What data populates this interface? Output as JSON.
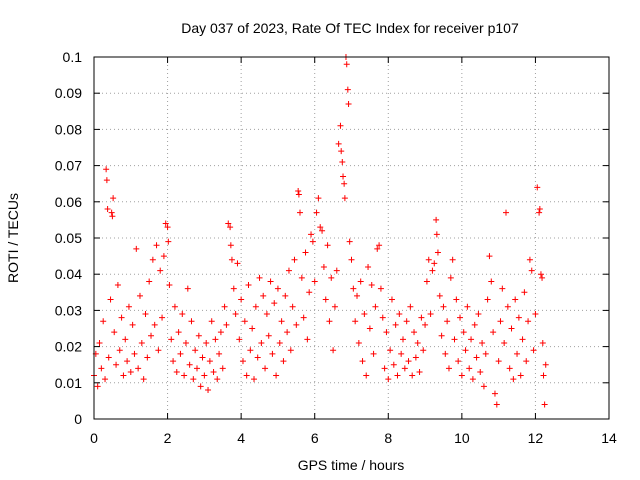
{
  "chart_data": {
    "type": "scatter",
    "title": "Day 037 of 2023, Rate Of TEC Index for receiver p107",
    "xlabel": "GPS time / hours",
    "ylabel": "ROTI / TECUs",
    "xlim": [
      0,
      14
    ],
    "ylim": [
      0,
      0.1
    ],
    "x_ticks": [
      "0",
      "2",
      "4",
      "6",
      "8",
      "10",
      "12",
      "14"
    ],
    "y_ticks": [
      "0",
      "0.01",
      "0.02",
      "0.03",
      "0.04",
      "0.05",
      "0.06",
      "0.07",
      "0.08",
      "0.09",
      "0.1"
    ],
    "grid": true,
    "marker": "plus",
    "color": "#ff0000",
    "points": [
      [
        0.0,
        0.012
      ],
      [
        0.05,
        0.018
      ],
      [
        0.1,
        0.009
      ],
      [
        0.15,
        0.021
      ],
      [
        0.2,
        0.014
      ],
      [
        0.25,
        0.027
      ],
      [
        0.3,
        0.011
      ],
      [
        0.33,
        0.069
      ],
      [
        0.35,
        0.066
      ],
      [
        0.37,
        0.058
      ],
      [
        0.4,
        0.017
      ],
      [
        0.45,
        0.033
      ],
      [
        0.48,
        0.057
      ],
      [
        0.5,
        0.056
      ],
      [
        0.52,
        0.061
      ],
      [
        0.55,
        0.024
      ],
      [
        0.6,
        0.015
      ],
      [
        0.65,
        0.037
      ],
      [
        0.7,
        0.019
      ],
      [
        0.75,
        0.028
      ],
      [
        0.8,
        0.012
      ],
      [
        0.85,
        0.022
      ],
      [
        0.9,
        0.016
      ],
      [
        0.95,
        0.031
      ],
      [
        1.0,
        0.013
      ],
      [
        1.05,
        0.026
      ],
      [
        1.1,
        0.018
      ],
      [
        1.15,
        0.047
      ],
      [
        1.2,
        0.014
      ],
      [
        1.25,
        0.034
      ],
      [
        1.3,
        0.021
      ],
      [
        1.35,
        0.011
      ],
      [
        1.4,
        0.029
      ],
      [
        1.45,
        0.017
      ],
      [
        1.5,
        0.038
      ],
      [
        1.55,
        0.023
      ],
      [
        1.6,
        0.044
      ],
      [
        1.65,
        0.026
      ],
      [
        1.7,
        0.048
      ],
      [
        1.75,
        0.019
      ],
      [
        1.8,
        0.041
      ],
      [
        1.85,
        0.028
      ],
      [
        1.9,
        0.045
      ],
      [
        1.95,
        0.054
      ],
      [
        2.0,
        0.053
      ],
      [
        2.02,
        0.049
      ],
      [
        2.05,
        0.037
      ],
      [
        2.1,
        0.022
      ],
      [
        2.15,
        0.016
      ],
      [
        2.2,
        0.031
      ],
      [
        2.25,
        0.013
      ],
      [
        2.3,
        0.024
      ],
      [
        2.35,
        0.018
      ],
      [
        2.4,
        0.029
      ],
      [
        2.45,
        0.012
      ],
      [
        2.5,
        0.021
      ],
      [
        2.55,
        0.036
      ],
      [
        2.6,
        0.015
      ],
      [
        2.65,
        0.027
      ],
      [
        2.7,
        0.011
      ],
      [
        2.75,
        0.019
      ],
      [
        2.8,
        0.014
      ],
      [
        2.85,
        0.023
      ],
      [
        2.9,
        0.009
      ],
      [
        2.95,
        0.017
      ],
      [
        3.0,
        0.012
      ],
      [
        3.05,
        0.021
      ],
      [
        3.1,
        0.008
      ],
      [
        3.15,
        0.016
      ],
      [
        3.2,
        0.027
      ],
      [
        3.25,
        0.013
      ],
      [
        3.3,
        0.022
      ],
      [
        3.35,
        0.011
      ],
      [
        3.4,
        0.018
      ],
      [
        3.45,
        0.024
      ],
      [
        3.5,
        0.014
      ],
      [
        3.55,
        0.031
      ],
      [
        3.6,
        0.026
      ],
      [
        3.65,
        0.054
      ],
      [
        3.7,
        0.053
      ],
      [
        3.72,
        0.048
      ],
      [
        3.75,
        0.044
      ],
      [
        3.8,
        0.036
      ],
      [
        3.85,
        0.029
      ],
      [
        3.9,
        0.043
      ],
      [
        3.95,
        0.022
      ],
      [
        4.0,
        0.033
      ],
      [
        4.05,
        0.016
      ],
      [
        4.1,
        0.027
      ],
      [
        4.15,
        0.012
      ],
      [
        4.2,
        0.037
      ],
      [
        4.25,
        0.019
      ],
      [
        4.3,
        0.025
      ],
      [
        4.35,
        0.011
      ],
      [
        4.4,
        0.031
      ],
      [
        4.45,
        0.017
      ],
      [
        4.5,
        0.039
      ],
      [
        4.55,
        0.021
      ],
      [
        4.6,
        0.034
      ],
      [
        4.65,
        0.014
      ],
      [
        4.7,
        0.029
      ],
      [
        4.75,
        0.023
      ],
      [
        4.8,
        0.038
      ],
      [
        4.85,
        0.018
      ],
      [
        4.9,
        0.032
      ],
      [
        4.95,
        0.012
      ],
      [
        5.0,
        0.036
      ],
      [
        5.05,
        0.021
      ],
      [
        5.1,
        0.027
      ],
      [
        5.15,
        0.016
      ],
      [
        5.2,
        0.034
      ],
      [
        5.25,
        0.024
      ],
      [
        5.3,
        0.041
      ],
      [
        5.35,
        0.019
      ],
      [
        5.4,
        0.031
      ],
      [
        5.45,
        0.044
      ],
      [
        5.5,
        0.026
      ],
      [
        5.55,
        0.063
      ],
      [
        5.57,
        0.062
      ],
      [
        5.6,
        0.057
      ],
      [
        5.65,
        0.039
      ],
      [
        5.7,
        0.028
      ],
      [
        5.75,
        0.046
      ],
      [
        5.8,
        0.022
      ],
      [
        5.85,
        0.035
      ],
      [
        5.9,
        0.051
      ],
      [
        5.95,
        0.049
      ],
      [
        6.0,
        0.038
      ],
      [
        6.05,
        0.057
      ],
      [
        6.1,
        0.061
      ],
      [
        6.15,
        0.053
      ],
      [
        6.2,
        0.052
      ],
      [
        6.25,
        0.042
      ],
      [
        6.3,
        0.033
      ],
      [
        6.35,
        0.048
      ],
      [
        6.4,
        0.027
      ],
      [
        6.45,
        0.039
      ],
      [
        6.5,
        0.019
      ],
      [
        6.55,
        0.031
      ],
      [
        6.6,
        0.041
      ],
      [
        6.65,
        0.076
      ],
      [
        6.7,
        0.081
      ],
      [
        6.72,
        0.074
      ],
      [
        6.75,
        0.071
      ],
      [
        6.77,
        0.067
      ],
      [
        6.8,
        0.065
      ],
      [
        6.82,
        0.061
      ],
      [
        6.85,
        0.1
      ],
      [
        6.87,
        0.098
      ],
      [
        6.9,
        0.091
      ],
      [
        6.92,
        0.087
      ],
      [
        6.95,
        0.049
      ],
      [
        7.0,
        0.044
      ],
      [
        7.05,
        0.036
      ],
      [
        7.1,
        0.027
      ],
      [
        7.15,
        0.034
      ],
      [
        7.2,
        0.021
      ],
      [
        7.25,
        0.038
      ],
      [
        7.3,
        0.016
      ],
      [
        7.35,
        0.029
      ],
      [
        7.4,
        0.012
      ],
      [
        7.45,
        0.042
      ],
      [
        7.5,
        0.025
      ],
      [
        7.55,
        0.037
      ],
      [
        7.6,
        0.018
      ],
      [
        7.65,
        0.031
      ],
      [
        7.7,
        0.047
      ],
      [
        7.75,
        0.048
      ],
      [
        7.8,
        0.036
      ],
      [
        7.85,
        0.028
      ],
      [
        7.9,
        0.014
      ],
      [
        7.95,
        0.024
      ],
      [
        8.0,
        0.011
      ],
      [
        8.05,
        0.019
      ],
      [
        8.1,
        0.033
      ],
      [
        8.15,
        0.015
      ],
      [
        8.2,
        0.026
      ],
      [
        8.25,
        0.012
      ],
      [
        8.3,
        0.029
      ],
      [
        8.35,
        0.018
      ],
      [
        8.4,
        0.022
      ],
      [
        8.45,
        0.014
      ],
      [
        8.5,
        0.027
      ],
      [
        8.55,
        0.016
      ],
      [
        8.6,
        0.031
      ],
      [
        8.65,
        0.012
      ],
      [
        8.7,
        0.024
      ],
      [
        8.75,
        0.017
      ],
      [
        8.8,
        0.021
      ],
      [
        8.85,
        0.013
      ],
      [
        8.9,
        0.028
      ],
      [
        8.95,
        0.019
      ],
      [
        9.0,
        0.026
      ],
      [
        9.05,
        0.038
      ],
      [
        9.1,
        0.044
      ],
      [
        9.15,
        0.029
      ],
      [
        9.2,
        0.041
      ],
      [
        9.25,
        0.043
      ],
      [
        9.3,
        0.055
      ],
      [
        9.32,
        0.051
      ],
      [
        9.35,
        0.046
      ],
      [
        9.4,
        0.034
      ],
      [
        9.45,
        0.023
      ],
      [
        9.5,
        0.031
      ],
      [
        9.55,
        0.018
      ],
      [
        9.6,
        0.027
      ],
      [
        9.65,
        0.014
      ],
      [
        9.7,
        0.039
      ],
      [
        9.75,
        0.044
      ],
      [
        9.8,
        0.022
      ],
      [
        9.85,
        0.033
      ],
      [
        9.9,
        0.016
      ],
      [
        9.95,
        0.028
      ],
      [
        10.0,
        0.012
      ],
      [
        10.05,
        0.024
      ],
      [
        10.1,
        0.019
      ],
      [
        10.15,
        0.031
      ],
      [
        10.2,
        0.014
      ],
      [
        10.25,
        0.022
      ],
      [
        10.3,
        0.011
      ],
      [
        10.35,
        0.026
      ],
      [
        10.4,
        0.017
      ],
      [
        10.45,
        0.029
      ],
      [
        10.5,
        0.013
      ],
      [
        10.55,
        0.021
      ],
      [
        10.6,
        0.009
      ],
      [
        10.65,
        0.018
      ],
      [
        10.7,
        0.033
      ],
      [
        10.75,
        0.045
      ],
      [
        10.8,
        0.038
      ],
      [
        10.85,
        0.024
      ],
      [
        10.9,
        0.007
      ],
      [
        10.95,
        0.004
      ],
      [
        11.0,
        0.016
      ],
      [
        11.05,
        0.027
      ],
      [
        11.1,
        0.036
      ],
      [
        11.15,
        0.021
      ],
      [
        11.2,
        0.057
      ],
      [
        11.25,
        0.031
      ],
      [
        11.3,
        0.014
      ],
      [
        11.35,
        0.025
      ],
      [
        11.4,
        0.011
      ],
      [
        11.45,
        0.033
      ],
      [
        11.5,
        0.018
      ],
      [
        11.55,
        0.028
      ],
      [
        11.6,
        0.012
      ],
      [
        11.65,
        0.022
      ],
      [
        11.7,
        0.035
      ],
      [
        11.75,
        0.016
      ],
      [
        11.8,
        0.027
      ],
      [
        11.85,
        0.044
      ],
      [
        11.9,
        0.041
      ],
      [
        11.95,
        0.019
      ],
      [
        12.0,
        0.029
      ],
      [
        12.05,
        0.064
      ],
      [
        12.1,
        0.057
      ],
      [
        12.12,
        0.058
      ],
      [
        12.15,
        0.04
      ],
      [
        12.18,
        0.039
      ],
      [
        12.2,
        0.021
      ],
      [
        12.22,
        0.012
      ],
      [
        12.25,
        0.004
      ],
      [
        12.28,
        0.015
      ]
    ]
  }
}
